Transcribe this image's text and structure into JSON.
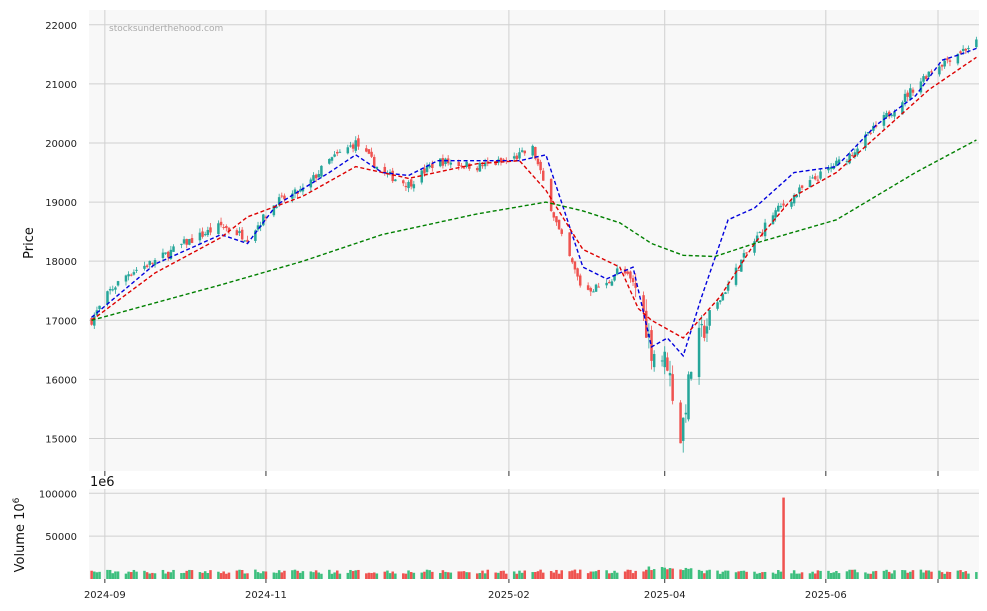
{
  "watermark": "stocksunderthehood.com",
  "price_panel": {
    "ylabel": "Price",
    "yticks": [
      "15000",
      "16000",
      "17000",
      "18000",
      "19000",
      "20000",
      "21000",
      "22000"
    ]
  },
  "volume_panel": {
    "ylabel": "Volume  10",
    "ylabel_sup": "6",
    "offset_label": "1e6",
    "yticks": [
      "50000",
      "100000"
    ]
  },
  "xticks": [
    "2024-09",
    "2024-11",
    "2025-02",
    "2025-04",
    "2025-06"
  ],
  "colors": {
    "up": "#26a69a",
    "up_bar": "#3dbf7e",
    "down": "#ef5350",
    "ma_fast": "#0000dd",
    "ma_mid": "#dd0000",
    "ma_slow": "#008000",
    "panel_bg": "#f8f8f8",
    "grid": "#d0d0d0"
  },
  "chart_data": [
    {
      "type": "candlestick",
      "title": "",
      "ylabel": "Price",
      "ylim": [
        14450,
        22250
      ],
      "x_range": [
        "2024-08-26",
        "2025-07-29"
      ],
      "grid": true,
      "ohlc_anchor_closes": {
        "x": [
          "2024-08-27",
          "2024-09-03",
          "2024-09-10",
          "2024-09-20",
          "2024-10-01",
          "2024-10-15",
          "2024-10-25",
          "2024-11-05",
          "2024-11-15",
          "2024-11-25",
          "2024-12-05",
          "2024-12-15",
          "2024-12-25",
          "2025-01-05",
          "2025-01-20",
          "2025-02-01",
          "2025-02-10",
          "2025-02-20",
          "2025-03-01",
          "2025-03-10",
          "2025-03-15",
          "2025-03-22",
          "2025-03-27",
          "2025-04-02",
          "2025-04-07",
          "2025-04-12",
          "2025-04-20",
          "2025-04-30",
          "2025-05-12",
          "2025-05-25",
          "2025-06-10",
          "2025-06-25",
          "2025-07-10",
          "2025-07-20",
          "2025-07-28"
        ],
        "y": [
          17000,
          17500,
          17800,
          18000,
          18300,
          18600,
          18400,
          19000,
          19200,
          19700,
          20000,
          19500,
          19300,
          19700,
          19600,
          19700,
          19900,
          18500,
          17500,
          17600,
          17900,
          17500,
          16500,
          16300,
          15000,
          16500,
          17200,
          18000,
          18800,
          19300,
          19800,
          20500,
          21200,
          21500,
          21700
        ]
      },
      "series": [
        {
          "name": "",
          "style": "dashed",
          "color": "#0000dd",
          "x": [
            "2024-08-27",
            "2024-09-20",
            "2024-10-15",
            "2024-10-25",
            "2024-11-05",
            "2024-11-25",
            "2024-12-05",
            "2024-12-15",
            "2024-12-25",
            "2025-01-05",
            "2025-02-05",
            "2025-02-15",
            "2025-03-01",
            "2025-03-10",
            "2025-03-20",
            "2025-03-27",
            "2025-04-02",
            "2025-04-08",
            "2025-04-15",
            "2025-04-25",
            "2025-05-05",
            "2025-05-20",
            "2025-06-05",
            "2025-06-20",
            "2025-07-05",
            "2025-07-15",
            "2025-07-22",
            "2025-07-28"
          ],
          "y": [
            17050,
            17950,
            18450,
            18300,
            18950,
            19500,
            19800,
            19500,
            19450,
            19700,
            19700,
            19800,
            17900,
            17700,
            17900,
            16550,
            16700,
            16400,
            17400,
            18700,
            18900,
            19500,
            19600,
            20300,
            20800,
            21400,
            21500,
            21600
          ]
        },
        {
          "name": "",
          "style": "dashed",
          "color": "#dd0000",
          "x": [
            "2024-08-27",
            "2024-09-20",
            "2024-10-15",
            "2024-10-25",
            "2024-11-15",
            "2024-12-05",
            "2024-12-25",
            "2025-01-20",
            "2025-02-05",
            "2025-02-15",
            "2025-03-01",
            "2025-03-15",
            "2025-03-22",
            "2025-03-27",
            "2025-04-08",
            "2025-04-22",
            "2025-05-05",
            "2025-05-20",
            "2025-06-05",
            "2025-06-25",
            "2025-07-10",
            "2025-07-28"
          ],
          "y": [
            17000,
            17800,
            18400,
            18750,
            19100,
            19600,
            19400,
            19650,
            19700,
            19200,
            18200,
            17900,
            17200,
            17000,
            16700,
            17400,
            18300,
            19100,
            19500,
            20300,
            20900,
            21450
          ]
        },
        {
          "name": "",
          "style": "dashed",
          "color": "#008000",
          "x": [
            "2024-08-27",
            "2024-10-15",
            "2024-11-15",
            "2024-12-15",
            "2025-01-20",
            "2025-02-15",
            "2025-03-01",
            "2025-03-15",
            "2025-03-27",
            "2025-04-08",
            "2025-04-20",
            "2025-05-05",
            "2025-06-05",
            "2025-07-05",
            "2025-07-28"
          ],
          "y": [
            17000,
            17600,
            18000,
            18450,
            18800,
            19000,
            18850,
            18650,
            18300,
            18100,
            18080,
            18300,
            18700,
            19500,
            20050
          ]
        }
      ]
    },
    {
      "type": "bar",
      "title": "",
      "ylabel": "Volume",
      "ylim": [
        0,
        105000
      ],
      "notable": [
        {
          "x": "2025-05-16",
          "value": 95000
        }
      ],
      "typical_range": [
        5000,
        15000
      ]
    }
  ]
}
